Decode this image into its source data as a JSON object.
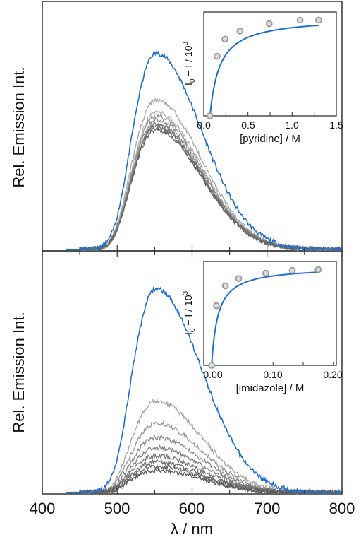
{
  "figure": {
    "xlabel": "λ / nm",
    "xticks": [
      "400",
      "500",
      "600",
      "700",
      "800"
    ],
    "xlim": [
      400,
      800
    ]
  },
  "chart_data": [
    {
      "type": "line",
      "panel": "top",
      "ylabel": "Rel. Emission Int.",
      "xlabel": "λ / nm",
      "xlim": [
        400,
        800
      ],
      "ylim": [
        0,
        1.2
      ],
      "peak_wavelength_nm": 550,
      "series_colors": [
        "#1f6fd1",
        "#a6a6a6",
        "#b3b3b3",
        "#999999",
        "#8c8c8c",
        "#808080",
        "#777777",
        "#6e6e6e",
        "#646464"
      ],
      "series_peaks": [
        1.0,
        0.76,
        0.7,
        0.68,
        0.66,
        0.64,
        0.63,
        0.62,
        0.61
      ],
      "inset": {
        "type": "scatter",
        "xlabel": "[pyridine] / M",
        "ylabel_main": "I",
        "ylabel_sub": "0",
        "ylabel_rest": " − I / 10",
        "ylabel_sup": "3",
        "xticks": [
          "0.0",
          "0.5",
          "1.0",
          "1.5"
        ],
        "xlim": [
          0,
          1.5
        ],
        "ylim": [
          0,
          1.15
        ],
        "x": [
          0.07,
          0.15,
          0.24,
          0.41,
          0.74,
          1.09,
          1.3
        ],
        "y": [
          0.0,
          0.66,
          0.85,
          0.94,
          1.02,
          1.06,
          1.06
        ],
        "fit_color": "#1f6fd1",
        "marker_color": "#999999"
      }
    },
    {
      "type": "line",
      "panel": "bottom",
      "ylabel": "Rel. Emission Int.",
      "xlabel": "λ / nm",
      "xlim": [
        400,
        800
      ],
      "ylim": [
        0,
        1.1
      ],
      "peak_wavelength_nm": 550,
      "series_colors": [
        "#1f6fd1",
        "#a6a6a6",
        "#999999",
        "#8c8c8c",
        "#808080",
        "#777777",
        "#6e6e6e",
        "#646464",
        "#5a5a5a"
      ],
      "series_peaks": [
        1.0,
        0.45,
        0.34,
        0.27,
        0.22,
        0.18,
        0.15,
        0.13,
        0.11
      ],
      "inset": {
        "type": "scatter",
        "xlabel": "[imidazole] / M",
        "ylabel_main": "I",
        "ylabel_sub": "0",
        "ylabel_rest": " − I / 10",
        "ylabel_sup": "3",
        "xticks": [
          "0.00",
          "0.10",
          "0.20"
        ],
        "xlim": [
          -0.015,
          0.205
        ],
        "ylim": [
          0,
          1.15
        ],
        "x": [
          -0.002,
          0.006,
          0.021,
          0.043,
          0.088,
          0.132,
          0.175
        ],
        "y": [
          0.0,
          0.66,
          0.88,
          0.96,
          1.02,
          1.05,
          1.06
        ],
        "fit_color": "#1f6fd1",
        "marker_color": "#999999"
      }
    }
  ]
}
